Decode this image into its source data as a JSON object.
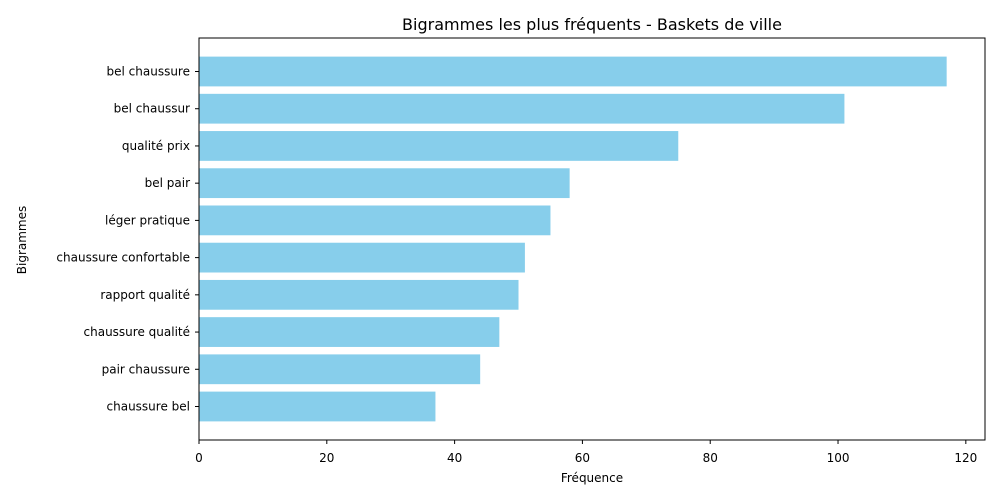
{
  "chart_data": {
    "type": "bar",
    "orientation": "horizontal",
    "title": "Bigrammes les plus fréquents - Baskets de ville",
    "xlabel": "Fréquence",
    "ylabel": "Bigrammes",
    "categories": [
      "bel chaussure",
      "bel chaussur",
      "qualité prix",
      "bel pair",
      "léger pratique",
      "chaussure confortable",
      "rapport qualité",
      "chaussure qualité",
      "pair chaussure",
      "chaussure bel"
    ],
    "values": [
      117,
      101,
      75,
      58,
      55,
      51,
      50,
      47,
      44,
      37
    ],
    "xlim": [
      0,
      123
    ],
    "xticks": [
      0,
      20,
      40,
      60,
      80,
      100,
      120
    ],
    "grid": false,
    "bar_color": "#87ceeb"
  }
}
